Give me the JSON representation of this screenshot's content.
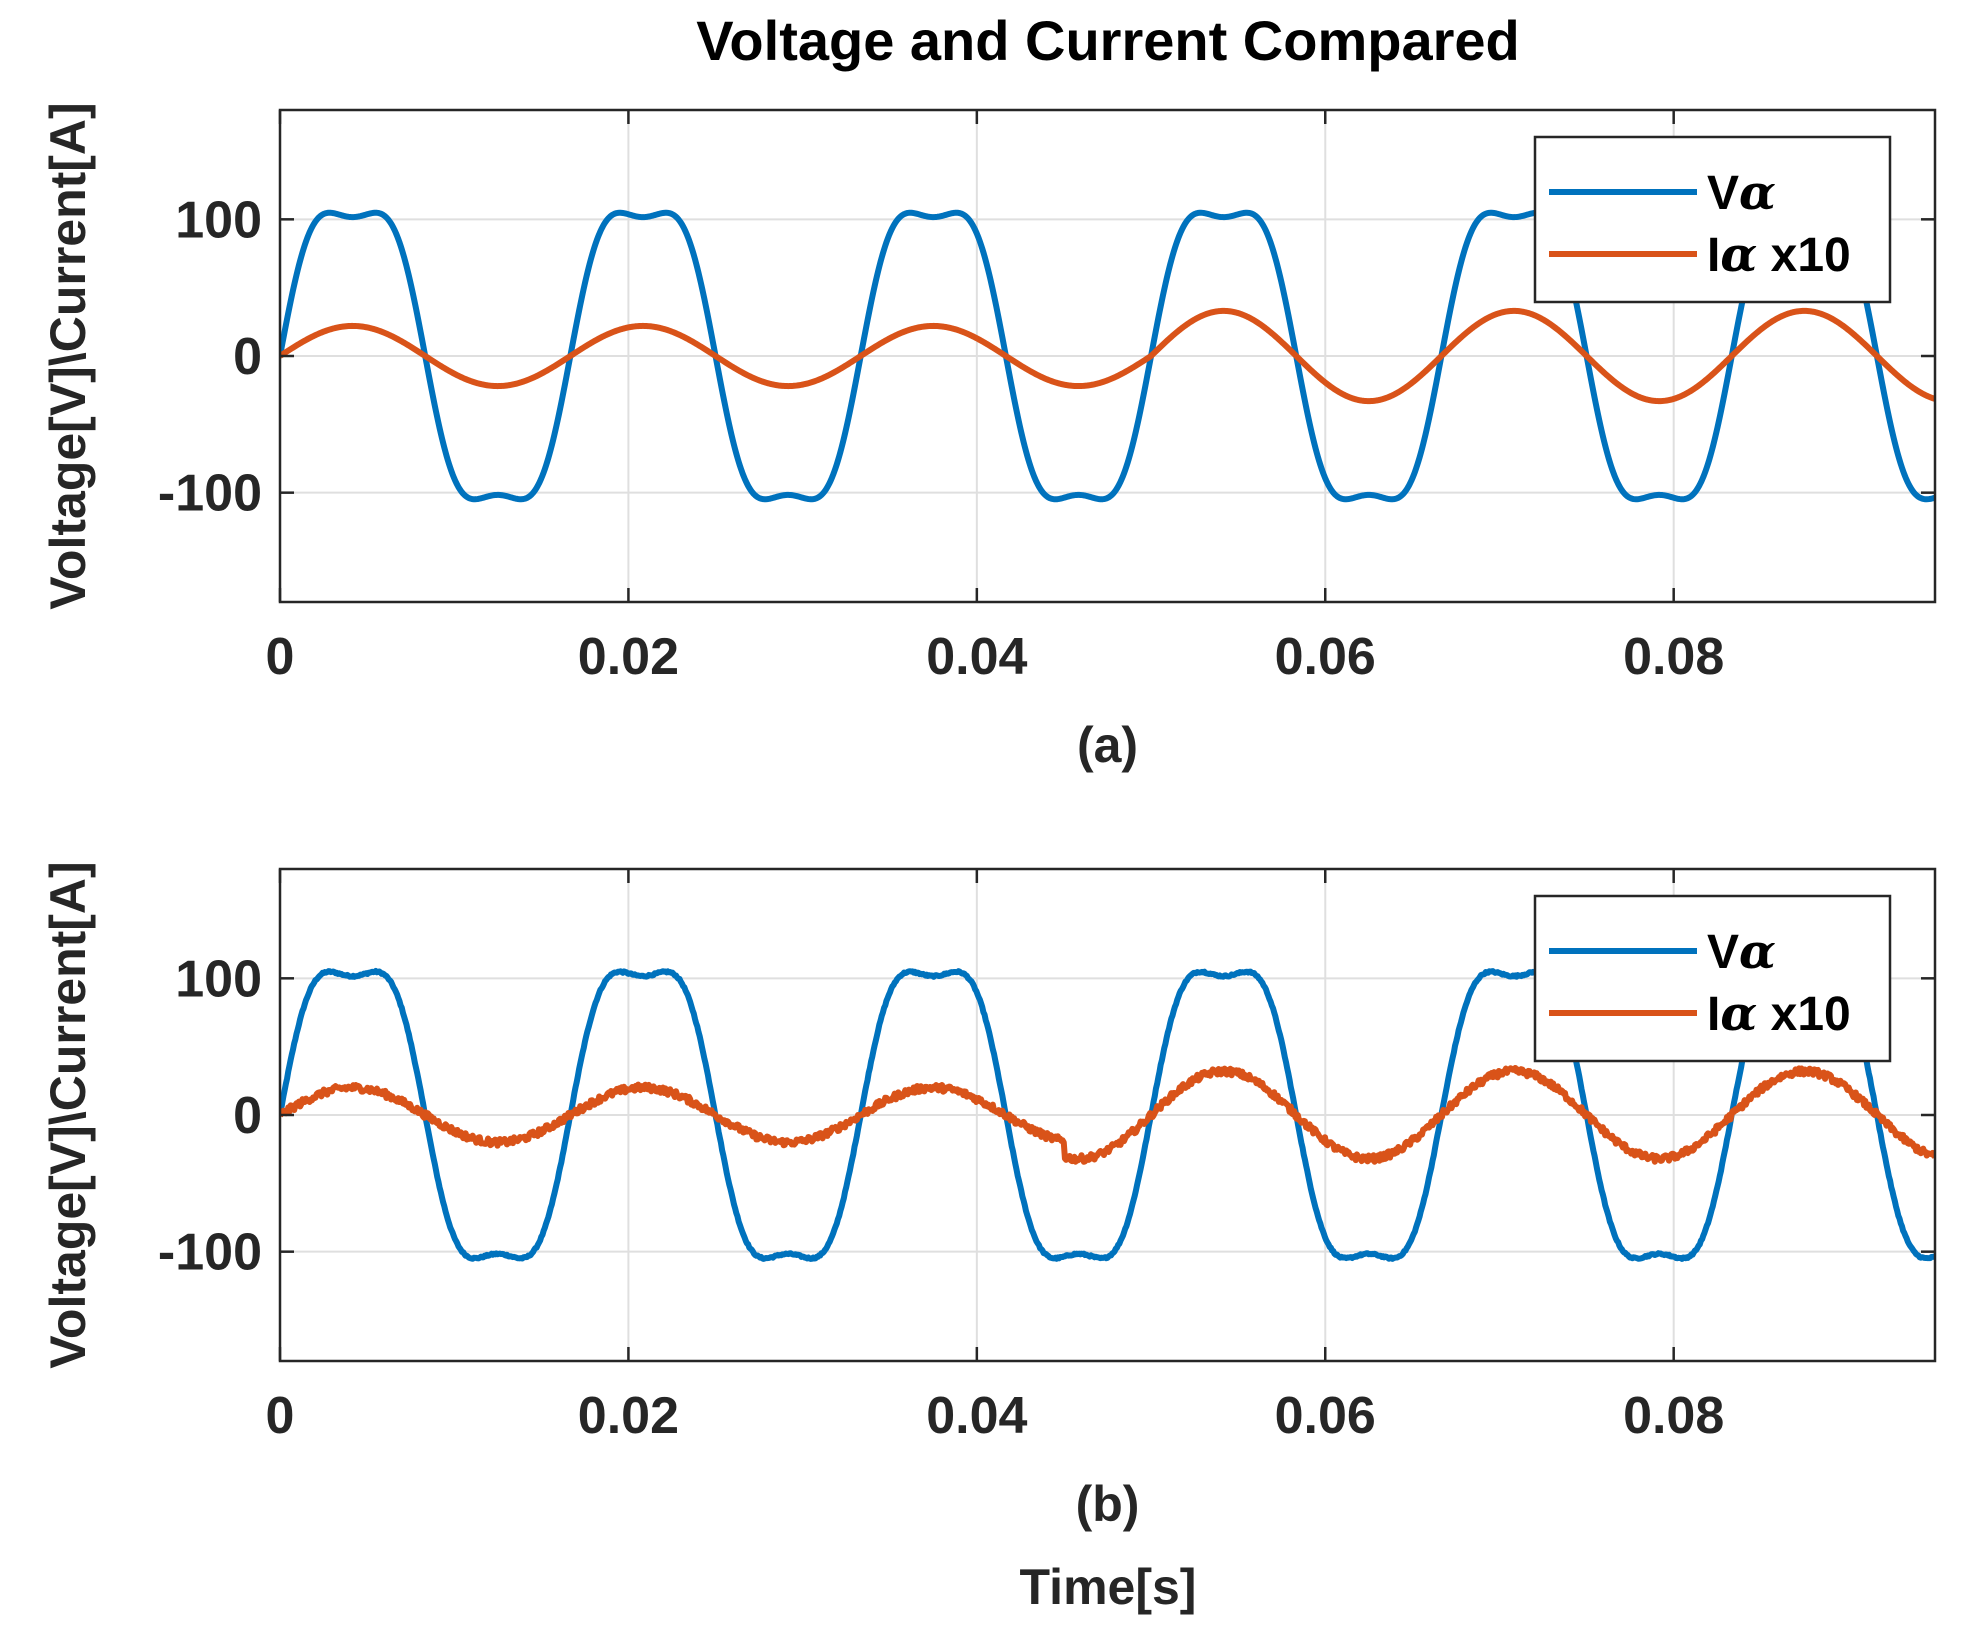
{
  "figure_title": "Voltage and Current Compared",
  "xlabel_bottom": "Time[s]",
  "colors": {
    "voltage": "#0072BD",
    "current": "#D95319"
  },
  "chart_data": [
    {
      "type": "line",
      "panel_label": "(a)",
      "ylabel": "Voltage[V]\\Current[A]",
      "xlim": [
        0,
        0.095
      ],
      "ylim": [
        -180,
        180
      ],
      "xticks": [
        0,
        0.02,
        0.04,
        0.06,
        0.08
      ],
      "xtick_labels": [
        "0",
        "0.02",
        "0.04",
        "0.06",
        "0.08"
      ],
      "yticks": [
        -100,
        0,
        100
      ],
      "ytick_labels": [
        "-100",
        "0",
        "100"
      ],
      "grid": true,
      "legend_position": "top-right",
      "series": [
        {
          "name": "Vα",
          "legend_main": "V",
          "legend_sub": "α",
          "legend_suffix": "",
          "color_key": "voltage",
          "waveform": "flat-top sine",
          "frequency_hz": 60,
          "amplitude": 110,
          "start_time": 0,
          "noise": 0
        },
        {
          "name": "Iα x10",
          "legend_main": "I",
          "legend_sub": "α",
          "legend_suffix": " x10",
          "color_key": "current",
          "waveform": "sine",
          "frequency_hz": 60,
          "phase_deg": 0,
          "amplitude_segments": [
            {
              "from": 0,
              "to": 0.05,
              "amplitude": 22
            },
            {
              "from": 0.05,
              "to": 0.095,
              "amplitude": 33
            }
          ],
          "noise": 0
        }
      ]
    },
    {
      "type": "line",
      "panel_label": "(b)",
      "ylabel": "Voltage[V]\\Current[A]",
      "xlim": [
        0,
        0.095
      ],
      "ylim": [
        -180,
        180
      ],
      "xticks": [
        0,
        0.02,
        0.04,
        0.06,
        0.08
      ],
      "xtick_labels": [
        "0",
        "0.02",
        "0.04",
        "0.06",
        "0.08"
      ],
      "yticks": [
        -100,
        0,
        100
      ],
      "ytick_labels": [
        "-100",
        "0",
        "100"
      ],
      "grid": true,
      "legend_position": "top-right",
      "series": [
        {
          "name": "Vα",
          "legend_main": "V",
          "legend_sub": "α",
          "legend_suffix": "",
          "color_key": "voltage",
          "waveform": "flat-top sine",
          "frequency_hz": 60,
          "amplitude": 110,
          "start_time": 0,
          "noise": 0.6
        },
        {
          "name": "Iα x10",
          "legend_main": "I",
          "legend_sub": "α",
          "legend_suffix": " x10",
          "color_key": "current",
          "waveform": "sine",
          "frequency_hz": 60,
          "phase_deg": 0,
          "amplitude_segments": [
            {
              "from": 0,
              "to": 0.045,
              "amplitude": 20
            },
            {
              "from": 0.045,
              "to": 0.095,
              "amplitude": 32
            }
          ],
          "noise": 2.5
        }
      ]
    }
  ]
}
